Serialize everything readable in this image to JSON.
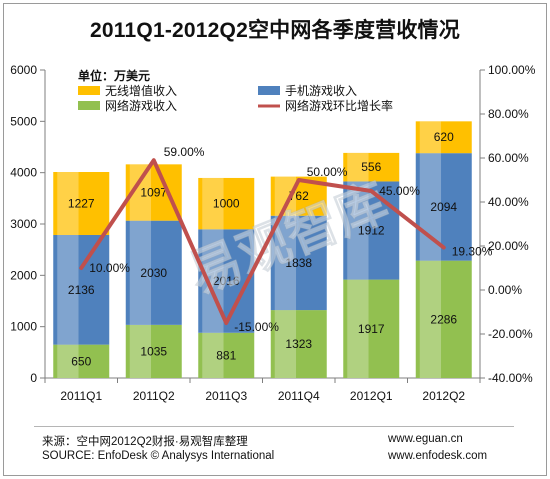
{
  "chart_data": {
    "type": "bar",
    "title": "2011Q1-2012Q2空中网各季度营收情况",
    "unit_label": "单位：万美元",
    "categories": [
      "2011Q1",
      "2011Q2",
      "2011Q3",
      "2011Q4",
      "2012Q1",
      "2012Q2"
    ],
    "stacked": true,
    "series": [
      {
        "name": "网络游戏收入",
        "color": "#92c050",
        "values": [
          650,
          1035,
          881,
          1323,
          1917,
          2286
        ]
      },
      {
        "name": "手机游戏收入",
        "color": "#4f81bd",
        "values": [
          2136,
          2030,
          2016,
          1838,
          1912,
          2094
        ]
      },
      {
        "name": "无线增值收入",
        "color": "#ffc000",
        "values": [
          1227,
          1097,
          1000,
          762,
          556,
          620
        ]
      }
    ],
    "line_series": {
      "name": "网络游戏环比增长率",
      "color": "#c0504d",
      "values": [
        10.0,
        59.0,
        -15.0,
        50.0,
        45.0,
        19.3
      ],
      "labels": [
        "10.00%",
        "59.00%",
        "-15.00%",
        "50.00%",
        "45.00%",
        "19.30%"
      ]
    },
    "y_left": {
      "min": 0,
      "max": 6000,
      "ticks": [
        "0",
        "1000",
        "2000",
        "3000",
        "4000",
        "5000",
        "6000"
      ]
    },
    "y_right": {
      "min": -40,
      "max": 100,
      "ticks": [
        "-40.00%",
        "-20.00%",
        "0.00%",
        "20.00%",
        "40.00%",
        "60.00%",
        "80.00%",
        "100.00%"
      ]
    },
    "grid": false,
    "legend_position": "top",
    "watermark": "易观智库"
  },
  "footer": {
    "source_cn": "来源：空中网2012Q2财报·易观智库整理",
    "source_en": "SOURCE: EnfoDesk © Analysys International",
    "url1": "www.eguan.cn",
    "url2": "www.enfodesk.com"
  }
}
